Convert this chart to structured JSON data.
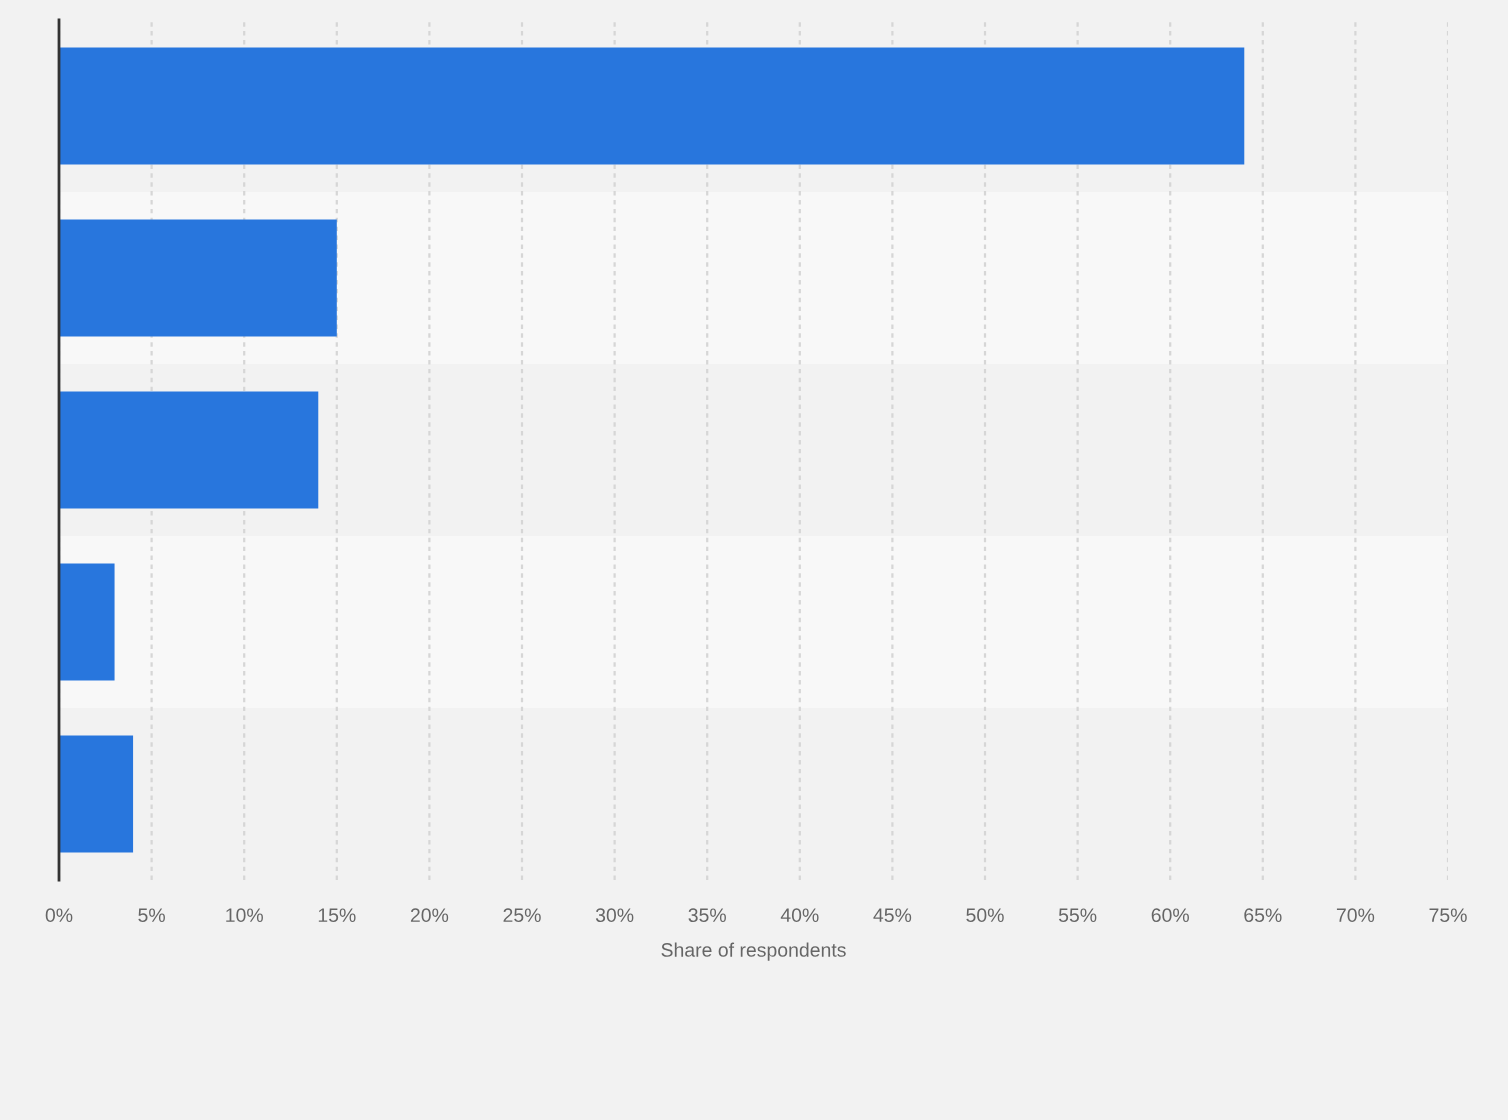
{
  "chart_data": {
    "type": "bar",
    "orientation": "horizontal",
    "categories": [
      null,
      null,
      null,
      null,
      null
    ],
    "values": [
      64,
      15,
      14,
      3,
      4
    ],
    "color": "#2876dd",
    "xlabel": "Share of respondents",
    "xlim": [
      0,
      75
    ],
    "xticks": [
      {
        "value": 0,
        "label": "0%"
      },
      {
        "value": 5,
        "label": "5%"
      },
      {
        "value": 10,
        "label": "10%"
      },
      {
        "value": 15,
        "label": "15%"
      },
      {
        "value": 20,
        "label": "20%"
      },
      {
        "value": 25,
        "label": "25%"
      },
      {
        "value": 30,
        "label": "30%"
      },
      {
        "value": 35,
        "label": "35%"
      },
      {
        "value": 40,
        "label": "40%"
      },
      {
        "value": 45,
        "label": "45%"
      },
      {
        "value": 50,
        "label": "50%"
      },
      {
        "value": 55,
        "label": "55%"
      },
      {
        "value": 60,
        "label": "60%"
      },
      {
        "value": 65,
        "label": "65%"
      },
      {
        "value": 70,
        "label": "70%"
      },
      {
        "value": 75,
        "label": "75%"
      }
    ],
    "grid": "x"
  }
}
